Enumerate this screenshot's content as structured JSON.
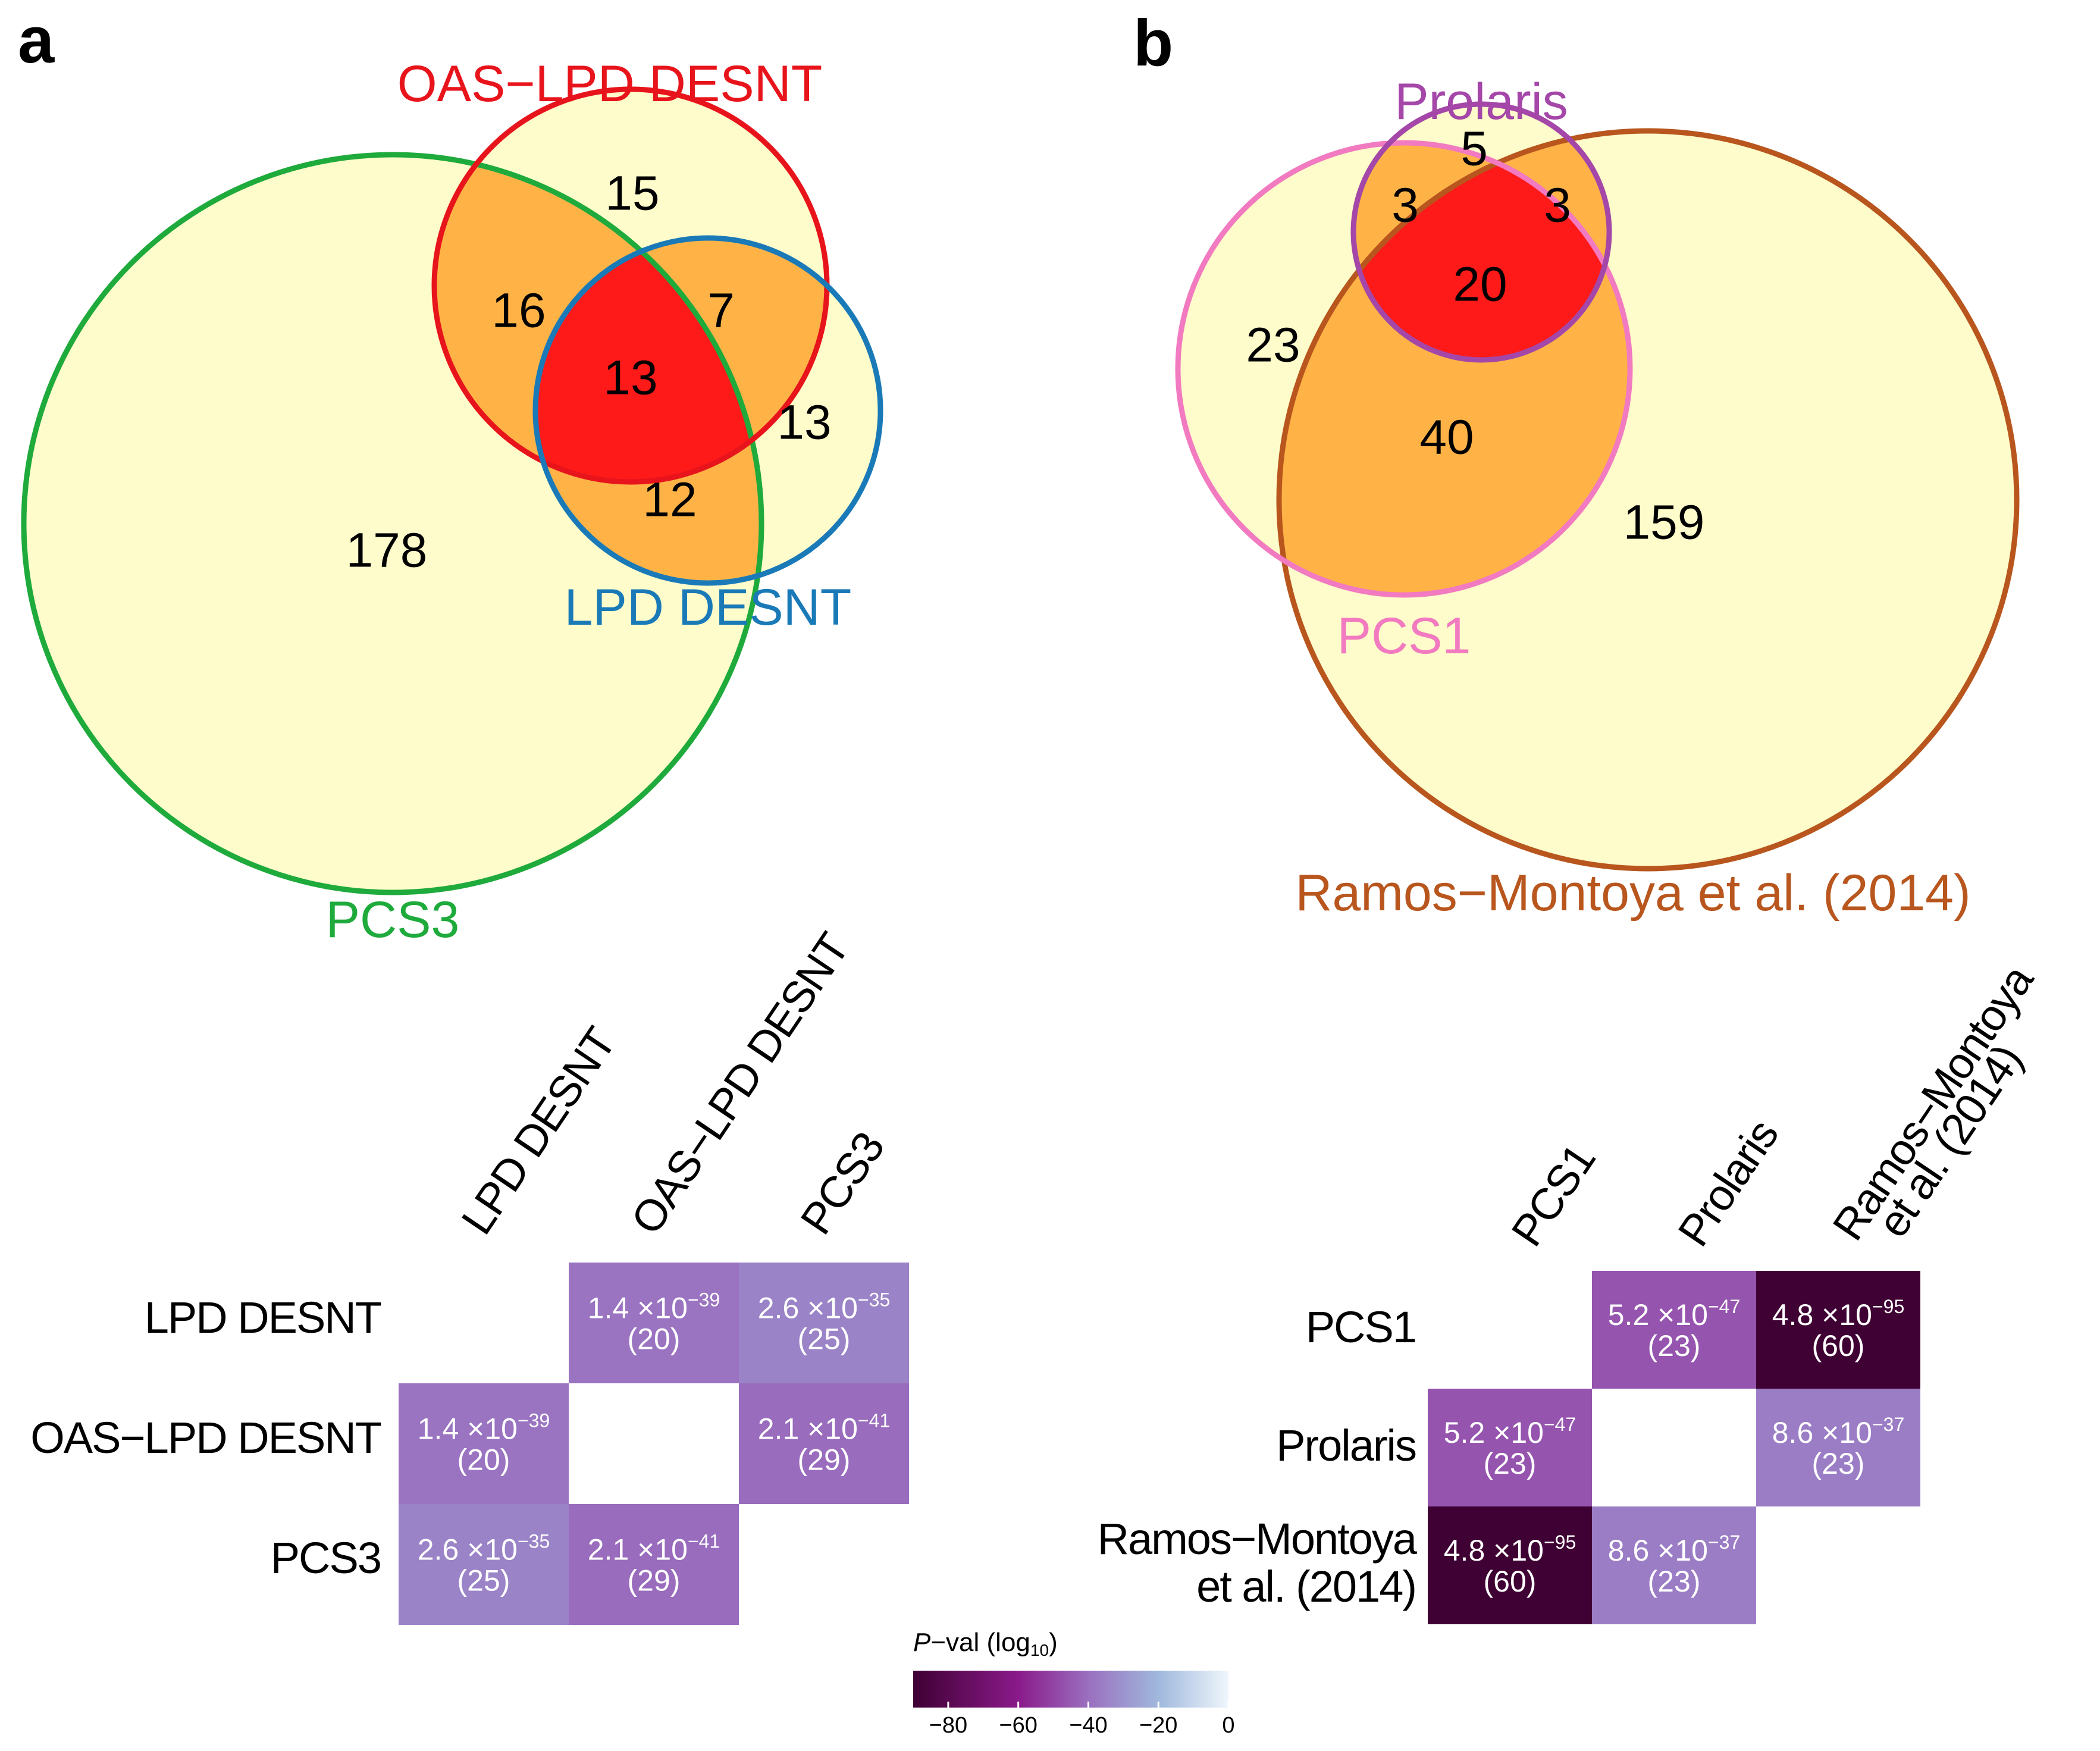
{
  "panel_a": {
    "letter": "a",
    "venn": {
      "sets": [
        {
          "key": "oas",
          "label": "OAS−LPD DESNT",
          "color": "#e8141c"
        },
        {
          "key": "lpd",
          "label": "LPD DESNT",
          "color": "#1a7ab8"
        },
        {
          "key": "pcs3",
          "label": "PCS3",
          "color": "#1faa3c"
        }
      ],
      "regions": {
        "oas_only": "15",
        "oas_pcs3": "16",
        "oas_lpd": "7",
        "all_three": "13",
        "lpd_only": "13",
        "lpd_pcs3": "12",
        "pcs3_only": "178"
      }
    },
    "matrix": {
      "labels": [
        "LPD DESNT",
        "OAS−LPD DESNT",
        "PCS3"
      ],
      "cells": [
        {
          "row": 0,
          "col": 1,
          "mant": "1.4",
          "exp": "−39",
          "count": "(20)",
          "log10p": -38.85
        },
        {
          "row": 0,
          "col": 2,
          "mant": "2.6",
          "exp": "−35",
          "count": "(25)",
          "log10p": -34.59
        },
        {
          "row": 1,
          "col": 0,
          "mant": "1.4",
          "exp": "−39",
          "count": "(20)",
          "log10p": -38.85
        },
        {
          "row": 1,
          "col": 2,
          "mant": "2.1",
          "exp": "−41",
          "count": "(29)",
          "log10p": -40.68
        },
        {
          "row": 2,
          "col": 0,
          "mant": "2.6",
          "exp": "−35",
          "count": "(25)",
          "log10p": -34.59
        },
        {
          "row": 2,
          "col": 1,
          "mant": "2.1",
          "exp": "−41",
          "count": "(29)",
          "log10p": -40.68
        }
      ]
    }
  },
  "panel_b": {
    "letter": "b",
    "venn": {
      "sets": [
        {
          "key": "prolaris",
          "label": "Prolaris",
          "color": "#a447a8"
        },
        {
          "key": "pcs1",
          "label": "PCS1",
          "color": "#f27ac0"
        },
        {
          "key": "ramos",
          "label": "Ramos−Montoya et al. (2014)",
          "color": "#b8561e"
        }
      ],
      "regions": {
        "prolaris_only": "5",
        "prolaris_pcs1": "3",
        "prolaris_ramos": "3",
        "all_three": "20",
        "pcs1_only": "23",
        "pcs1_ramos": "40",
        "ramos_only": "159"
      }
    },
    "matrix": {
      "labels": [
        "PCS1",
        "Prolaris",
        "Ramos−Montoya et al. (2014)"
      ],
      "col_labels_lines": [
        [
          "PCS1"
        ],
        [
          "Prolaris"
        ],
        [
          "Ramos−Montoya",
          "et al. (2014)"
        ]
      ],
      "row_labels_lines": [
        [
          "PCS1"
        ],
        [
          "Prolaris"
        ],
        [
          "Ramos−Montoya",
          "et al. (2014)"
        ]
      ],
      "cells": [
        {
          "row": 0,
          "col": 1,
          "mant": "5.2",
          "exp": "−47",
          "count": "(23)",
          "log10p": -46.28
        },
        {
          "row": 0,
          "col": 2,
          "mant": "4.8",
          "exp": "−95",
          "count": "(60)",
          "log10p": -94.32
        },
        {
          "row": 1,
          "col": 0,
          "mant": "5.2",
          "exp": "−47",
          "count": "(23)",
          "log10p": -46.28
        },
        {
          "row": 1,
          "col": 2,
          "mant": "8.6",
          "exp": "−37",
          "count": "(23)",
          "log10p": -36.07
        },
        {
          "row": 2,
          "col": 0,
          "mant": "4.8",
          "exp": "−95",
          "count": "(60)",
          "log10p": -94.32
        },
        {
          "row": 2,
          "col": 1,
          "mant": "8.6",
          "exp": "−37",
          "count": "(23)",
          "log10p": -36.07
        }
      ]
    }
  },
  "legend": {
    "title_italic": "P",
    "title_rest": "−val (log",
    "title_sub": "10",
    "title_close": ")",
    "range": [
      -90,
      0
    ],
    "ticks": [
      {
        "value": -80,
        "label": "−80"
      },
      {
        "value": -60,
        "label": "−60"
      },
      {
        "value": -40,
        "label": "−40"
      },
      {
        "value": -20,
        "label": "−20"
      },
      {
        "value": 0,
        "label": "0"
      }
    ],
    "stops": [
      {
        "value": -90,
        "color": "#3f0033"
      },
      {
        "value": -60,
        "color": "#8a1a8a"
      },
      {
        "value": -40,
        "color": "#9a6fbf"
      },
      {
        "value": -20,
        "color": "#9fb8dc"
      },
      {
        "value": 0,
        "color": "#f0f6fc"
      }
    ]
  }
}
